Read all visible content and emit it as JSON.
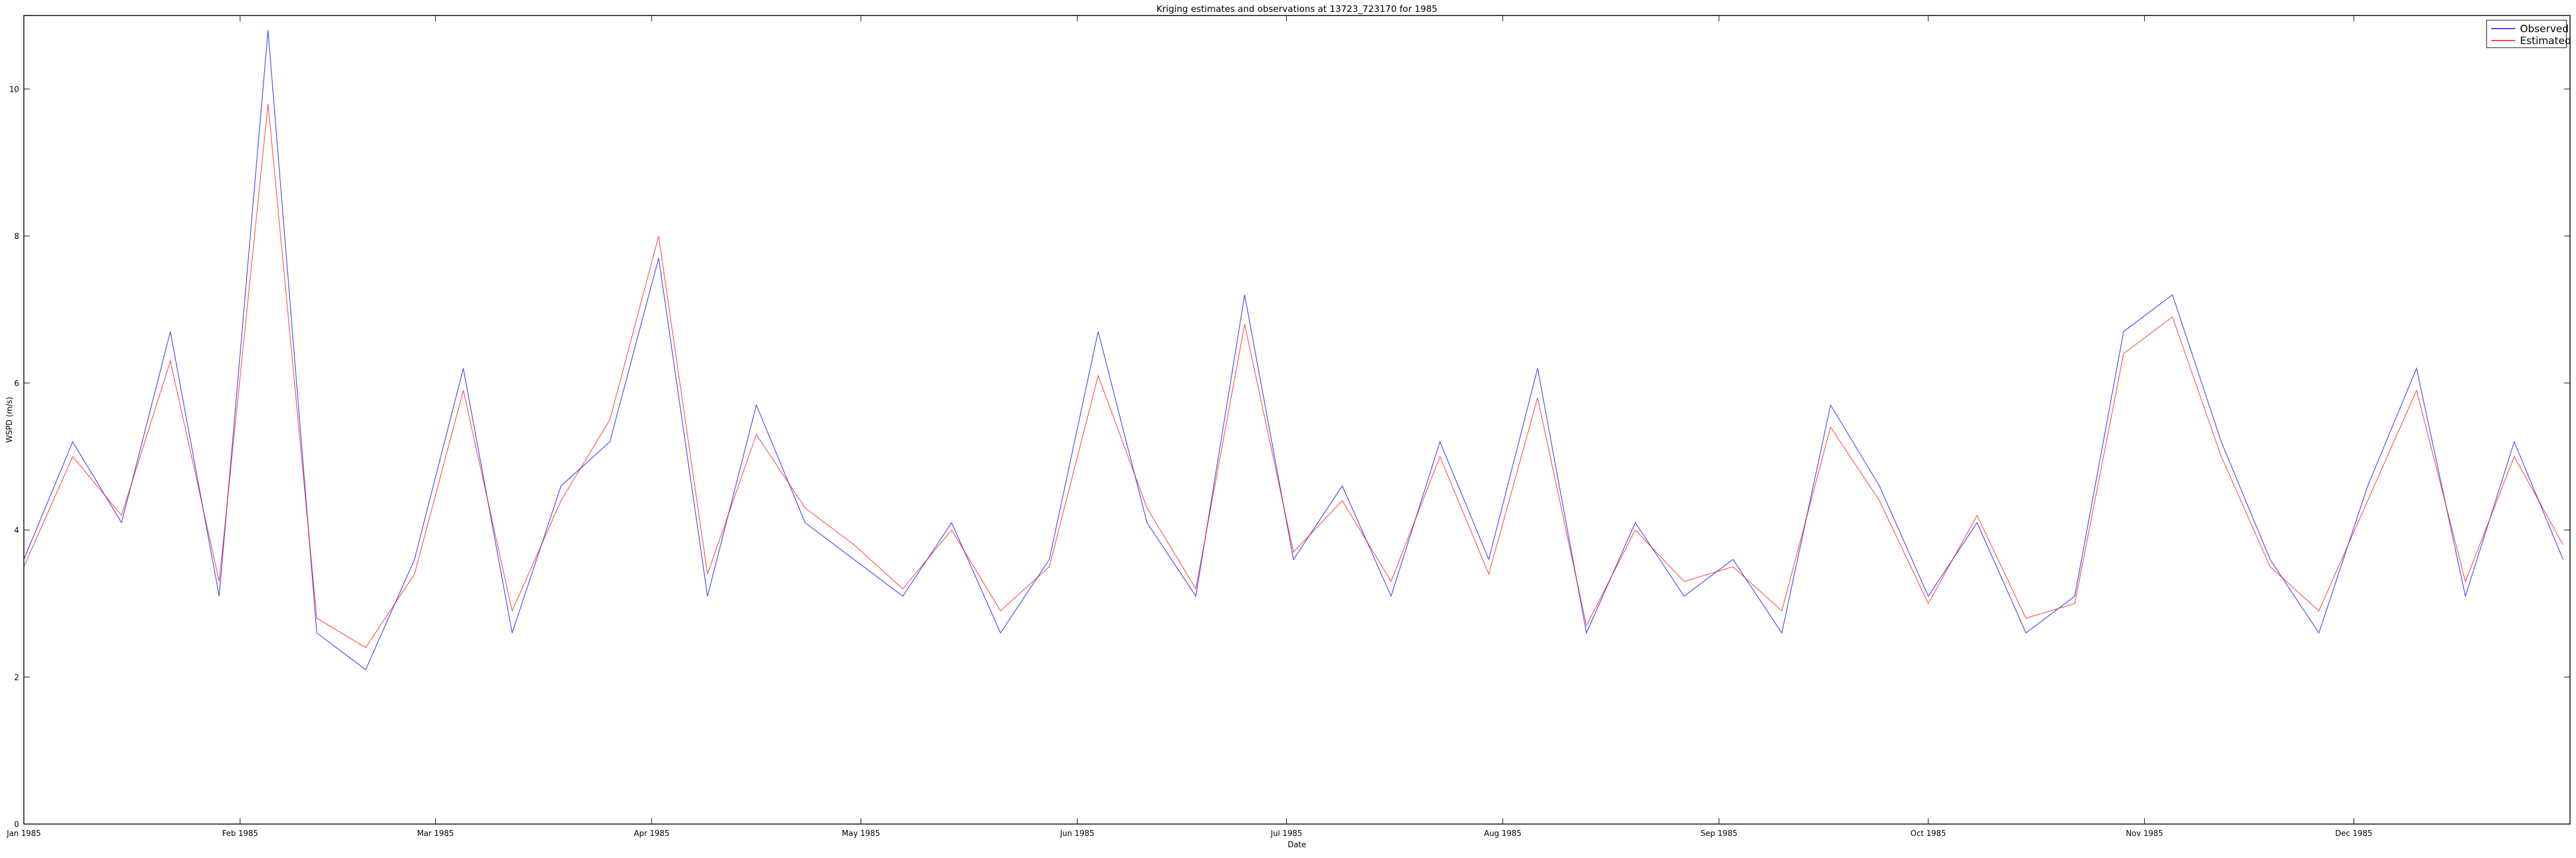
{
  "chart_data": {
    "type": "line",
    "title": "Kriging estimates and observations at 13723_723170 for 1985",
    "xlabel": "Date",
    "ylabel": "WSPD (m/s)",
    "xlim": [
      "1985-01-01",
      "1986-01-01"
    ],
    "ylim": [
      0,
      11
    ],
    "x_ticks": [
      {
        "date": "1985-01-01",
        "label": "Jan 1985"
      },
      {
        "date": "1985-02-01",
        "label": "Feb 1985"
      },
      {
        "date": "1985-03-01",
        "label": "Mar 1985"
      },
      {
        "date": "1985-04-01",
        "label": "Apr 1985"
      },
      {
        "date": "1985-05-01",
        "label": "May 1985"
      },
      {
        "date": "1985-06-01",
        "label": "Jun 1985"
      },
      {
        "date": "1985-07-01",
        "label": "Jul 1985"
      },
      {
        "date": "1985-08-01",
        "label": "Aug 1985"
      },
      {
        "date": "1985-09-01",
        "label": "Sep 1985"
      },
      {
        "date": "1985-10-01",
        "label": "Oct 1985"
      },
      {
        "date": "1985-11-01",
        "label": "Nov 1985"
      },
      {
        "date": "1985-12-01",
        "label": "Dec 1985"
      }
    ],
    "y_ticks": [
      0,
      2,
      4,
      6,
      8,
      10
    ],
    "grid": false,
    "legend": "top-right",
    "series": [
      {
        "name": "Observed",
        "color": "#0000ff",
        "x": [
          "1985-01-01",
          "1985-01-08",
          "1985-01-15",
          "1985-01-22",
          "1985-01-29",
          "1985-02-05",
          "1985-02-12",
          "1985-02-19",
          "1985-02-26",
          "1985-03-05",
          "1985-03-12",
          "1985-03-19",
          "1985-03-26",
          "1985-04-02",
          "1985-04-09",
          "1985-04-16",
          "1985-04-23",
          "1985-04-30",
          "1985-05-07",
          "1985-05-14",
          "1985-05-21",
          "1985-05-28",
          "1985-06-04",
          "1985-06-11",
          "1985-06-18",
          "1985-06-25",
          "1985-07-02",
          "1985-07-09",
          "1985-07-16",
          "1985-07-23",
          "1985-07-30",
          "1985-08-06",
          "1985-08-13",
          "1985-08-20",
          "1985-08-27",
          "1985-09-03",
          "1985-09-10",
          "1985-09-17",
          "1985-09-24",
          "1985-10-01",
          "1985-10-08",
          "1985-10-15",
          "1985-10-22",
          "1985-10-29",
          "1985-11-05",
          "1985-11-12",
          "1985-11-19",
          "1985-11-26",
          "1985-12-03",
          "1985-12-10",
          "1985-12-17",
          "1985-12-24",
          "1985-12-31"
        ],
        "values": [
          3.6,
          5.2,
          4.1,
          6.7,
          3.1,
          10.8,
          2.6,
          2.1,
          3.6,
          6.2,
          2.6,
          4.6,
          5.2,
          7.7,
          3.1,
          5.7,
          4.1,
          3.6,
          3.1,
          4.1,
          2.6,
          3.6,
          6.7,
          4.1,
          3.1,
          7.2,
          3.6,
          4.6,
          3.1,
          5.2,
          3.6,
          6.2,
          2.6,
          4.1,
          3.1,
          3.6,
          2.6,
          5.7,
          4.6,
          3.1,
          4.1,
          2.6,
          3.1,
          6.7,
          7.2,
          5.2,
          3.6,
          2.6,
          4.6,
          6.2,
          3.1,
          5.2,
          3.6
        ]
      },
      {
        "name": "Estimated",
        "color": "#ff0000",
        "x": [
          "1985-01-01",
          "1985-01-08",
          "1985-01-15",
          "1985-01-22",
          "1985-01-29",
          "1985-02-05",
          "1985-02-12",
          "1985-02-19",
          "1985-02-26",
          "1985-03-05",
          "1985-03-12",
          "1985-03-19",
          "1985-03-26",
          "1985-04-02",
          "1985-04-09",
          "1985-04-16",
          "1985-04-23",
          "1985-04-30",
          "1985-05-07",
          "1985-05-14",
          "1985-05-21",
          "1985-05-28",
          "1985-06-04",
          "1985-06-11",
          "1985-06-18",
          "1985-06-25",
          "1985-07-02",
          "1985-07-09",
          "1985-07-16",
          "1985-07-23",
          "1985-07-30",
          "1985-08-06",
          "1985-08-13",
          "1985-08-20",
          "1985-08-27",
          "1985-09-03",
          "1985-09-10",
          "1985-09-17",
          "1985-09-24",
          "1985-10-01",
          "1985-10-08",
          "1985-10-15",
          "1985-10-22",
          "1985-10-29",
          "1985-11-05",
          "1985-11-12",
          "1985-11-19",
          "1985-11-26",
          "1985-12-03",
          "1985-12-10",
          "1985-12-17",
          "1985-12-24",
          "1985-12-31"
        ],
        "values": [
          3.5,
          5.0,
          4.2,
          6.3,
          3.3,
          9.8,
          2.8,
          2.4,
          3.4,
          5.9,
          2.9,
          4.4,
          5.5,
          8.0,
          3.4,
          5.3,
          4.3,
          3.8,
          3.2,
          4.0,
          2.9,
          3.5,
          6.1,
          4.3,
          3.2,
          6.8,
          3.7,
          4.4,
          3.3,
          5.0,
          3.4,
          5.8,
          2.7,
          4.0,
          3.3,
          3.5,
          2.9,
          5.4,
          4.4,
          3.0,
          4.2,
          2.8,
          3.0,
          6.4,
          6.9,
          5.0,
          3.5,
          2.9,
          4.4,
          5.9,
          3.3,
          5.0,
          3.8
        ]
      }
    ]
  }
}
